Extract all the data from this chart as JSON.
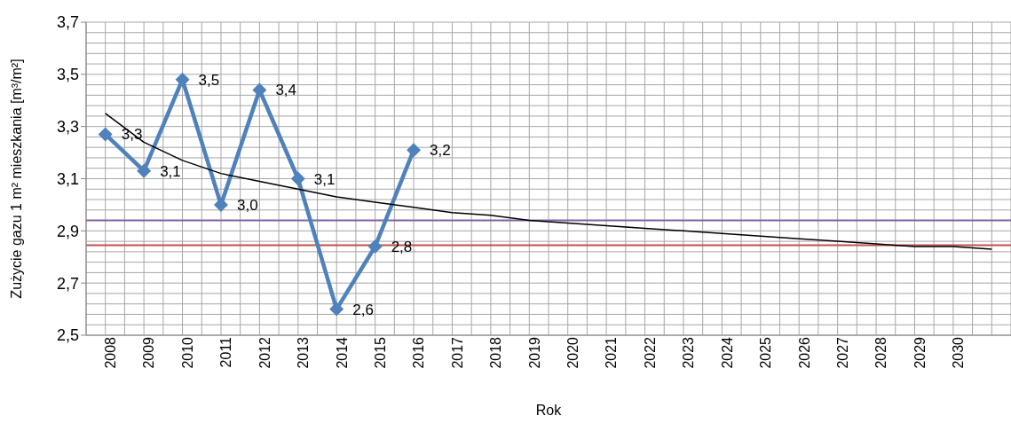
{
  "chart_data": {
    "type": "line",
    "xlabel": "Rok",
    "ylabel": "Zużycie gazu 1 m² mieszkania [m³/m²]",
    "categories": [
      "2008",
      "2009",
      "2010",
      "2011",
      "2012",
      "2013",
      "2014",
      "2015",
      "2016",
      "2017",
      "2018",
      "2019",
      "2020",
      "2021",
      "2022",
      "2023",
      "2024",
      "2025",
      "2026",
      "2027",
      "2028",
      "2029",
      "2030",
      null
    ],
    "series": [
      {
        "color": "#4f81bd",
        "marker": "diamond",
        "values": [
          3.27,
          3.13,
          3.48,
          3.0,
          3.44,
          3.1,
          2.6,
          2.84,
          3.21,
          null,
          null,
          null,
          null,
          null,
          null,
          null,
          null,
          null,
          null,
          null,
          null,
          null,
          null,
          null
        ],
        "value_labels": [
          "3,3",
          "3,1",
          "3,5",
          "3,0",
          "3,4",
          "3,1",
          "2,6",
          "2,8",
          "3,2",
          null,
          null,
          null,
          null,
          null,
          null,
          null,
          null,
          null,
          null,
          null,
          null,
          null,
          null,
          null
        ]
      },
      {
        "color": "#000000",
        "marker": "none",
        "values": [
          3.35,
          3.24,
          3.17,
          3.12,
          3.09,
          3.06,
          3.03,
          3.01,
          2.99,
          2.97,
          2.96,
          2.94,
          2.93,
          2.92,
          2.91,
          2.9,
          2.89,
          2.88,
          2.87,
          2.86,
          2.85,
          2.84,
          2.84,
          2.83
        ]
      }
    ],
    "ref_lines": [
      {
        "axis": "y",
        "value": 2.94,
        "color": "#8064a2"
      },
      {
        "axis": "y",
        "value": 2.845,
        "color": "#c0504d"
      }
    ],
    "ylim": [
      2.5,
      3.7
    ],
    "yticks": [
      {
        "value": 2.5,
        "label": "2,5"
      },
      {
        "value": 2.7,
        "label": "2,7"
      },
      {
        "value": 2.9,
        "label": "2,9"
      },
      {
        "value": 3.1,
        "label": "3,1"
      },
      {
        "value": 3.3,
        "label": "3,3"
      },
      {
        "value": 3.5,
        "label": "3,5"
      },
      {
        "value": 3.7,
        "label": "3,7"
      }
    ],
    "grid": true,
    "legend": false,
    "line_style": "solid"
  }
}
